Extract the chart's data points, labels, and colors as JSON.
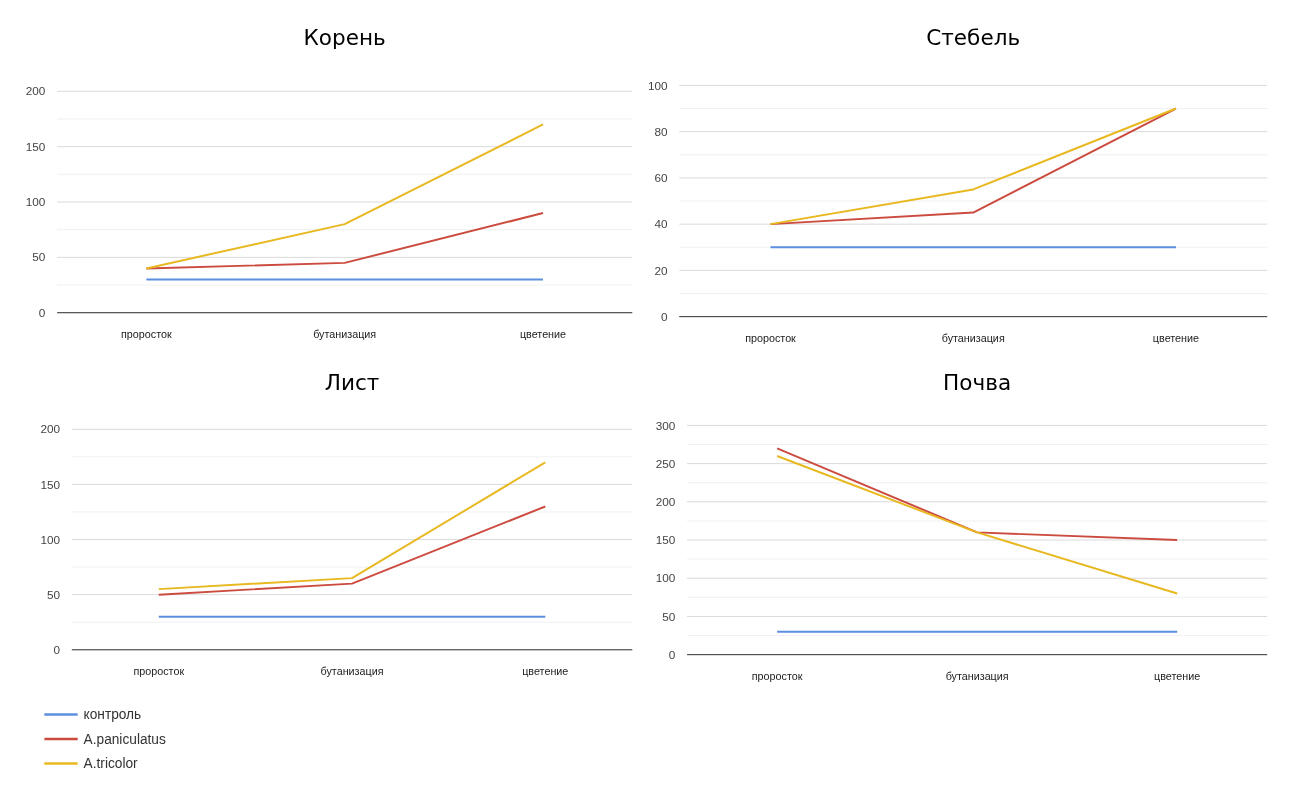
{
  "chart_data": [
    {
      "type": "line",
      "title": "Корень",
      "categories": [
        "проросток",
        "бутанизация",
        "цветение"
      ],
      "ylim": [
        0,
        200
      ],
      "yticks": [
        0,
        {
          "value": 25,
          "label": null
        },
        50,
        {
          "value": 75,
          "label": null
        },
        100,
        {
          "value": 125,
          "label": null
        },
        150,
        {
          "value": 175,
          "label": null
        },
        200
      ],
      "grid": "y",
      "series": [
        {
          "color": "#5b8fe0",
          "values": [
            30,
            30,
            30
          ]
        },
        {
          "color": "#cc4b3f",
          "values": [
            40,
            45,
            90
          ]
        },
        {
          "color": "#e8b820",
          "values": [
            40,
            80,
            170
          ]
        }
      ]
    },
    {
      "type": "line",
      "title": "Стебель",
      "categories": [
        "проросток",
        "бутанизация",
        "цветение"
      ],
      "ylim": [
        0,
        100
      ],
      "yticks": [
        0,
        {
          "value": 10,
          "label": null
        },
        20,
        {
          "value": 30,
          "label": null
        },
        40,
        {
          "value": 50,
          "label": null
        },
        60,
        {
          "value": 70,
          "label": null
        },
        80,
        {
          "value": 90,
          "label": null
        },
        100
      ],
      "grid": "y",
      "series": [
        {
          "color": "#5b8fe0",
          "values": [
            30,
            30,
            30
          ]
        },
        {
          "color": "#cc4b3f",
          "values": [
            40,
            45,
            90
          ]
        },
        {
          "color": "#e8b820",
          "values": [
            40,
            55,
            90
          ]
        }
      ]
    },
    {
      "type": "line",
      "title": "Лист",
      "categories": [
        "проросток",
        "бутанизация",
        "цветение"
      ],
      "ylim": [
        0,
        200
      ],
      "yticks": [
        0,
        {
          "value": 25,
          "label": null
        },
        50,
        {
          "value": 75,
          "label": null
        },
        100,
        {
          "value": 125,
          "label": null
        },
        150,
        {
          "value": 175,
          "label": null
        },
        200
      ],
      "grid": "y",
      "legend": "bottom left",
      "series": [
        {
          "name": "контроль",
          "color": "#5b8fe0",
          "values": [
            30,
            30,
            30
          ]
        },
        {
          "name": "A.paniculatus",
          "color": "#cc4b3f",
          "values": [
            50,
            60,
            130
          ]
        },
        {
          "name": "A.tricolor",
          "color": "#e8b820",
          "values": [
            55,
            65,
            170
          ]
        }
      ]
    },
    {
      "type": "line",
      "title": "Почва",
      "categories": [
        "проросток",
        "бутанизация",
        "цветение"
      ],
      "ylim": [
        0,
        300
      ],
      "yticks": [
        0,
        {
          "value": 25,
          "label": null
        },
        50,
        {
          "value": 75,
          "label": null
        },
        100,
        {
          "value": 125,
          "label": null
        },
        150,
        {
          "value": 175,
          "label": null
        },
        200,
        {
          "value": 225,
          "label": null
        },
        250,
        {
          "value": 275,
          "label": null
        },
        300
      ],
      "grid": "y",
      "series": [
        {
          "color": "#5b8fe0",
          "values": [
            30,
            30,
            30
          ]
        },
        {
          "color": "#cc4b3f",
          "values": [
            270,
            160,
            150
          ]
        },
        {
          "color": "#e8b820",
          "values": [
            260,
            160,
            80
          ]
        }
      ]
    }
  ]
}
